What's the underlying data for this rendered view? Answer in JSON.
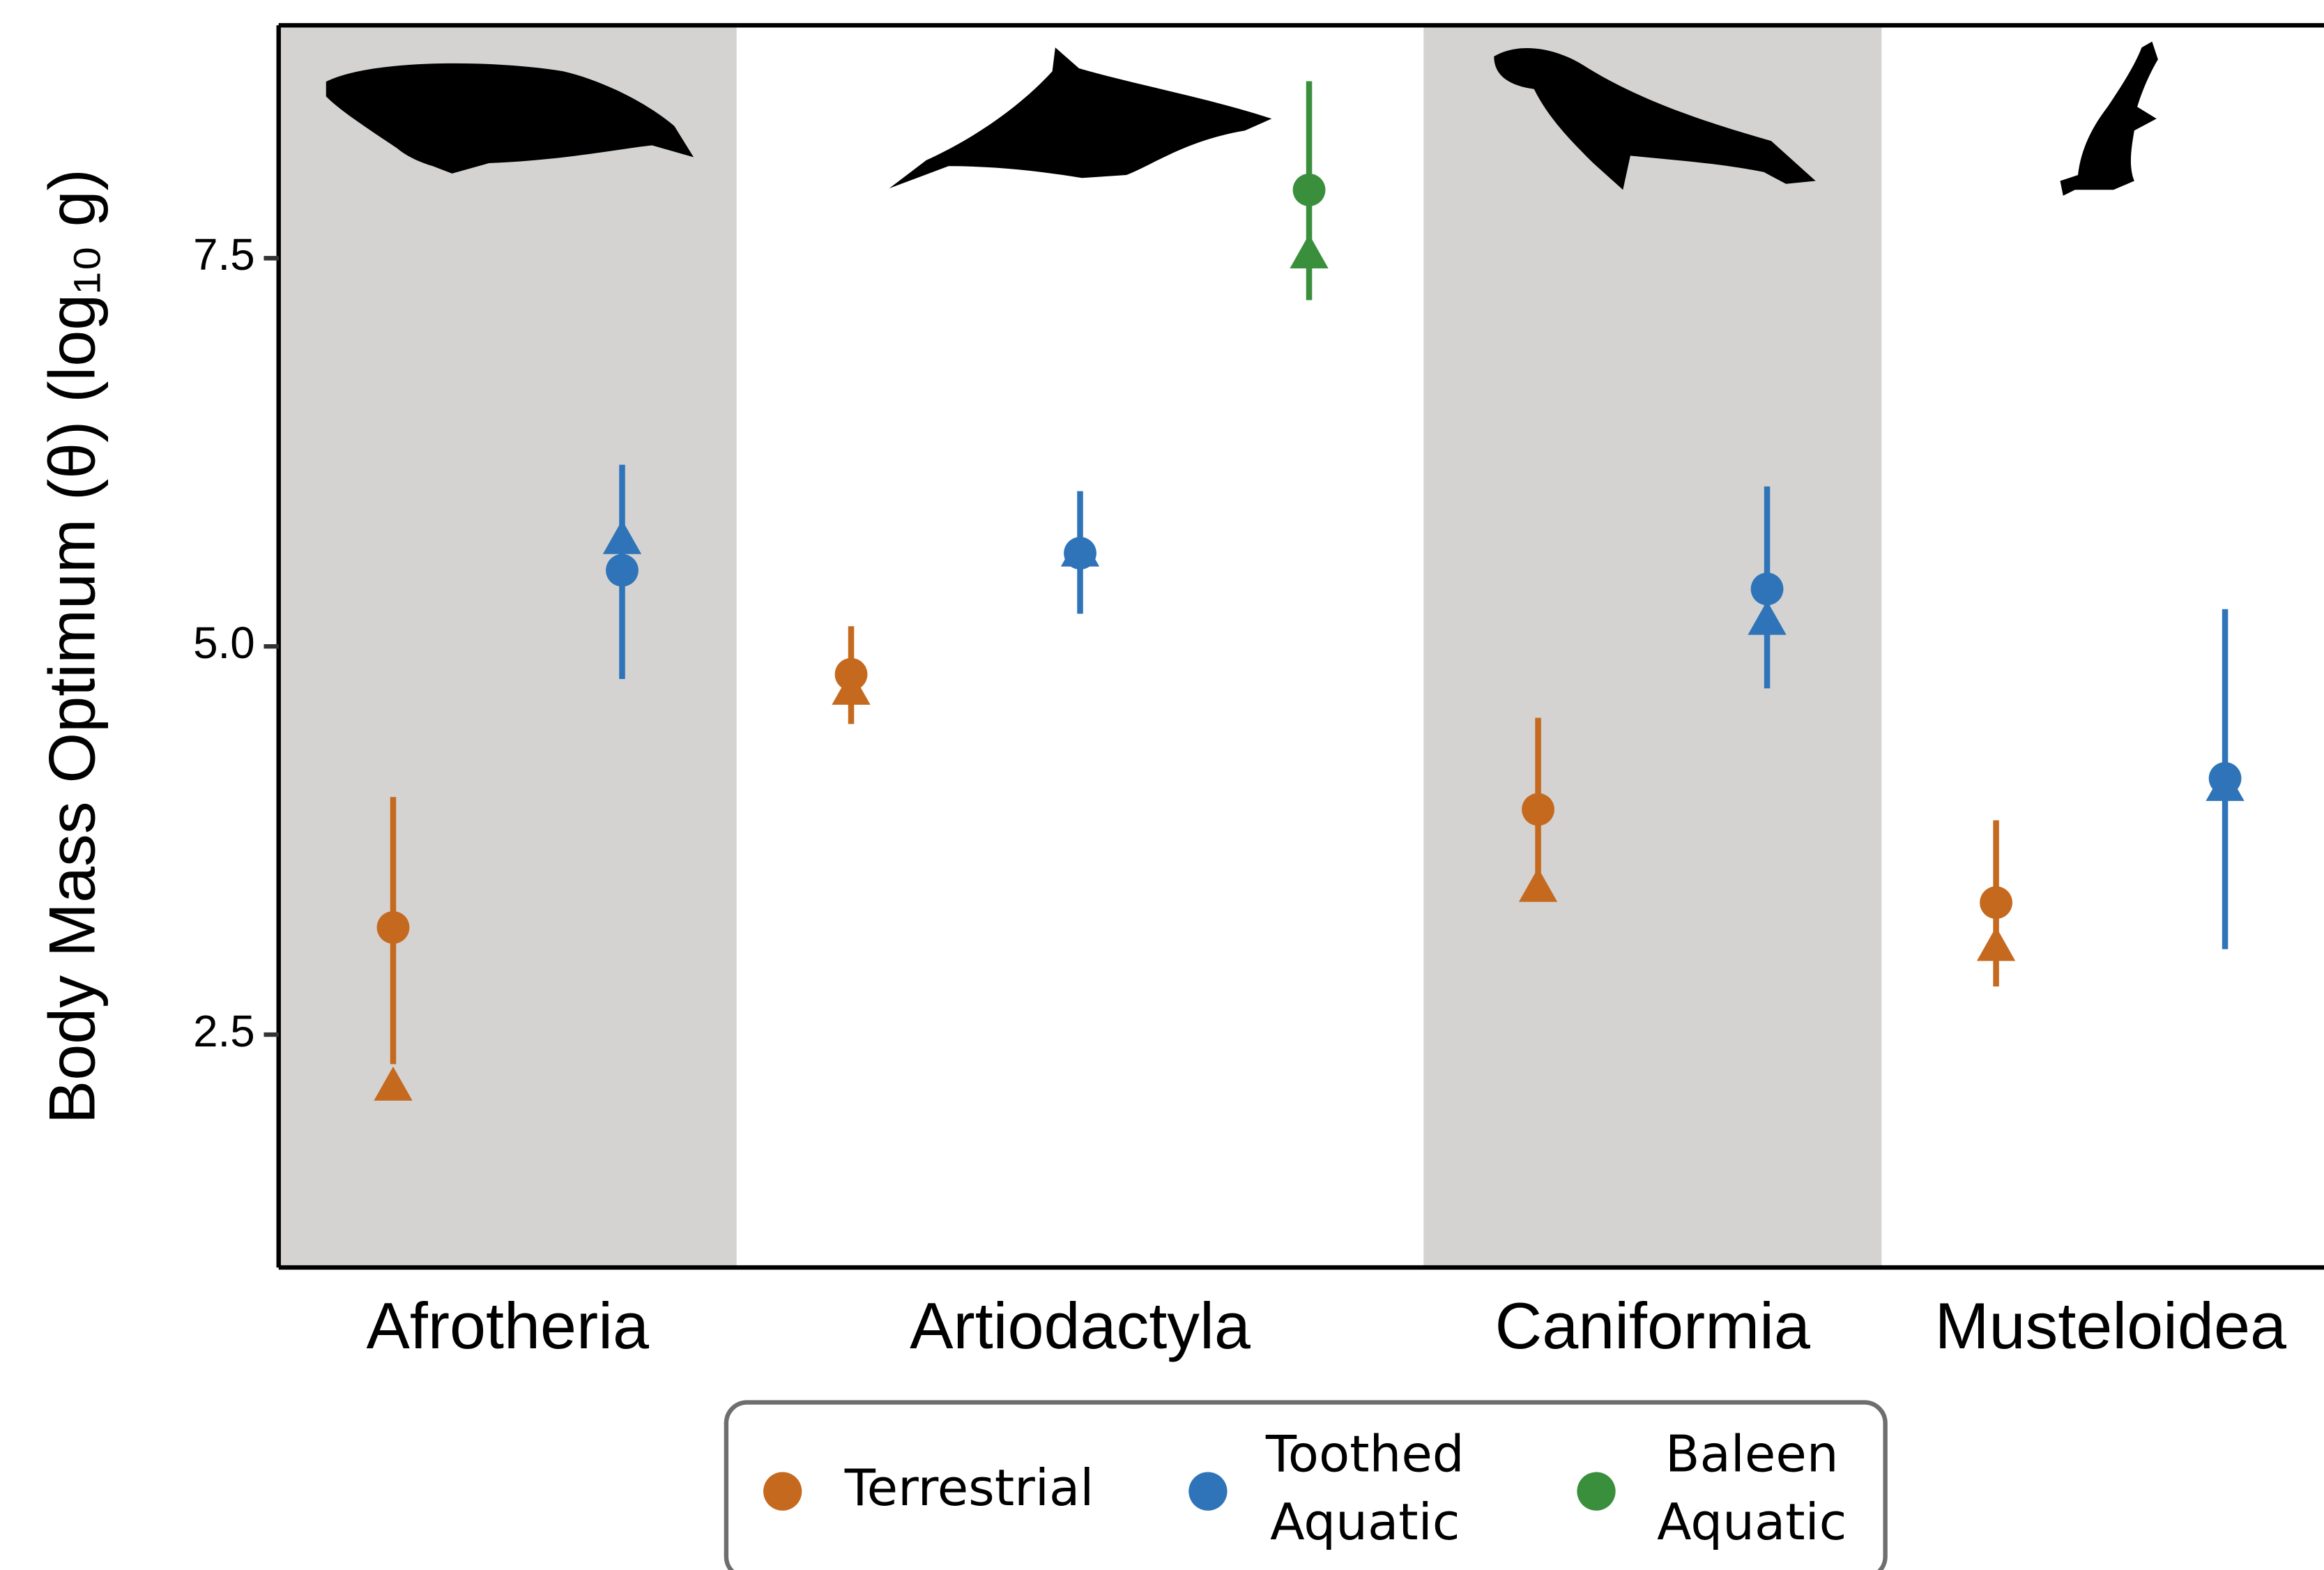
{
  "chart_data": {
    "type": "pointrange",
    "y_label": "Body Mass Optimum (θ) (log₁₀ g)",
    "categories": [
      "Afrotheria",
      "Artiodactyla",
      "Caniformia",
      "Musteloidea"
    ],
    "ylim": [
      1,
      9
    ],
    "yticks": [
      7.5,
      {
        "value": 5,
        "label": "5.0"
      },
      2.5
    ],
    "grid": false,
    "band_color": "#d4d3d2",
    "series": [
      {
        "name": "Terrestrial",
        "color": "#c5691f",
        "values": [
          3.19,
          4.82,
          3.95,
          3.35
        ],
        "error_low": [
          2.31,
          4.5,
          3.43,
          2.81
        ],
        "error_high": [
          4.03,
          5.13,
          4.54,
          3.88
        ],
        "triangle_values": [
          2.17,
          4.72,
          3.45,
          3.07
        ]
      },
      {
        "name": "Toothed Aquatic",
        "color": "#2f74b8",
        "values": [
          5.49,
          5.6,
          5.37,
          4.15
        ],
        "error_low": [
          4.79,
          5.21,
          4.73,
          3.05
        ],
        "error_high": [
          6.17,
          6.0,
          6.03,
          5.24
        ],
        "triangle_values": [
          5.69,
          5.61,
          5.17,
          4.1
        ]
      },
      {
        "name": "Baleen Aquatic",
        "color": "#3a8f3c",
        "values": [
          null,
          7.94,
          null,
          null
        ],
        "error_low": [
          null,
          7.23,
          null,
          null
        ],
        "error_high": [
          null,
          8.64,
          null,
          null
        ],
        "triangle_values": [
          null,
          7.53,
          null,
          null
        ]
      }
    ]
  }
}
